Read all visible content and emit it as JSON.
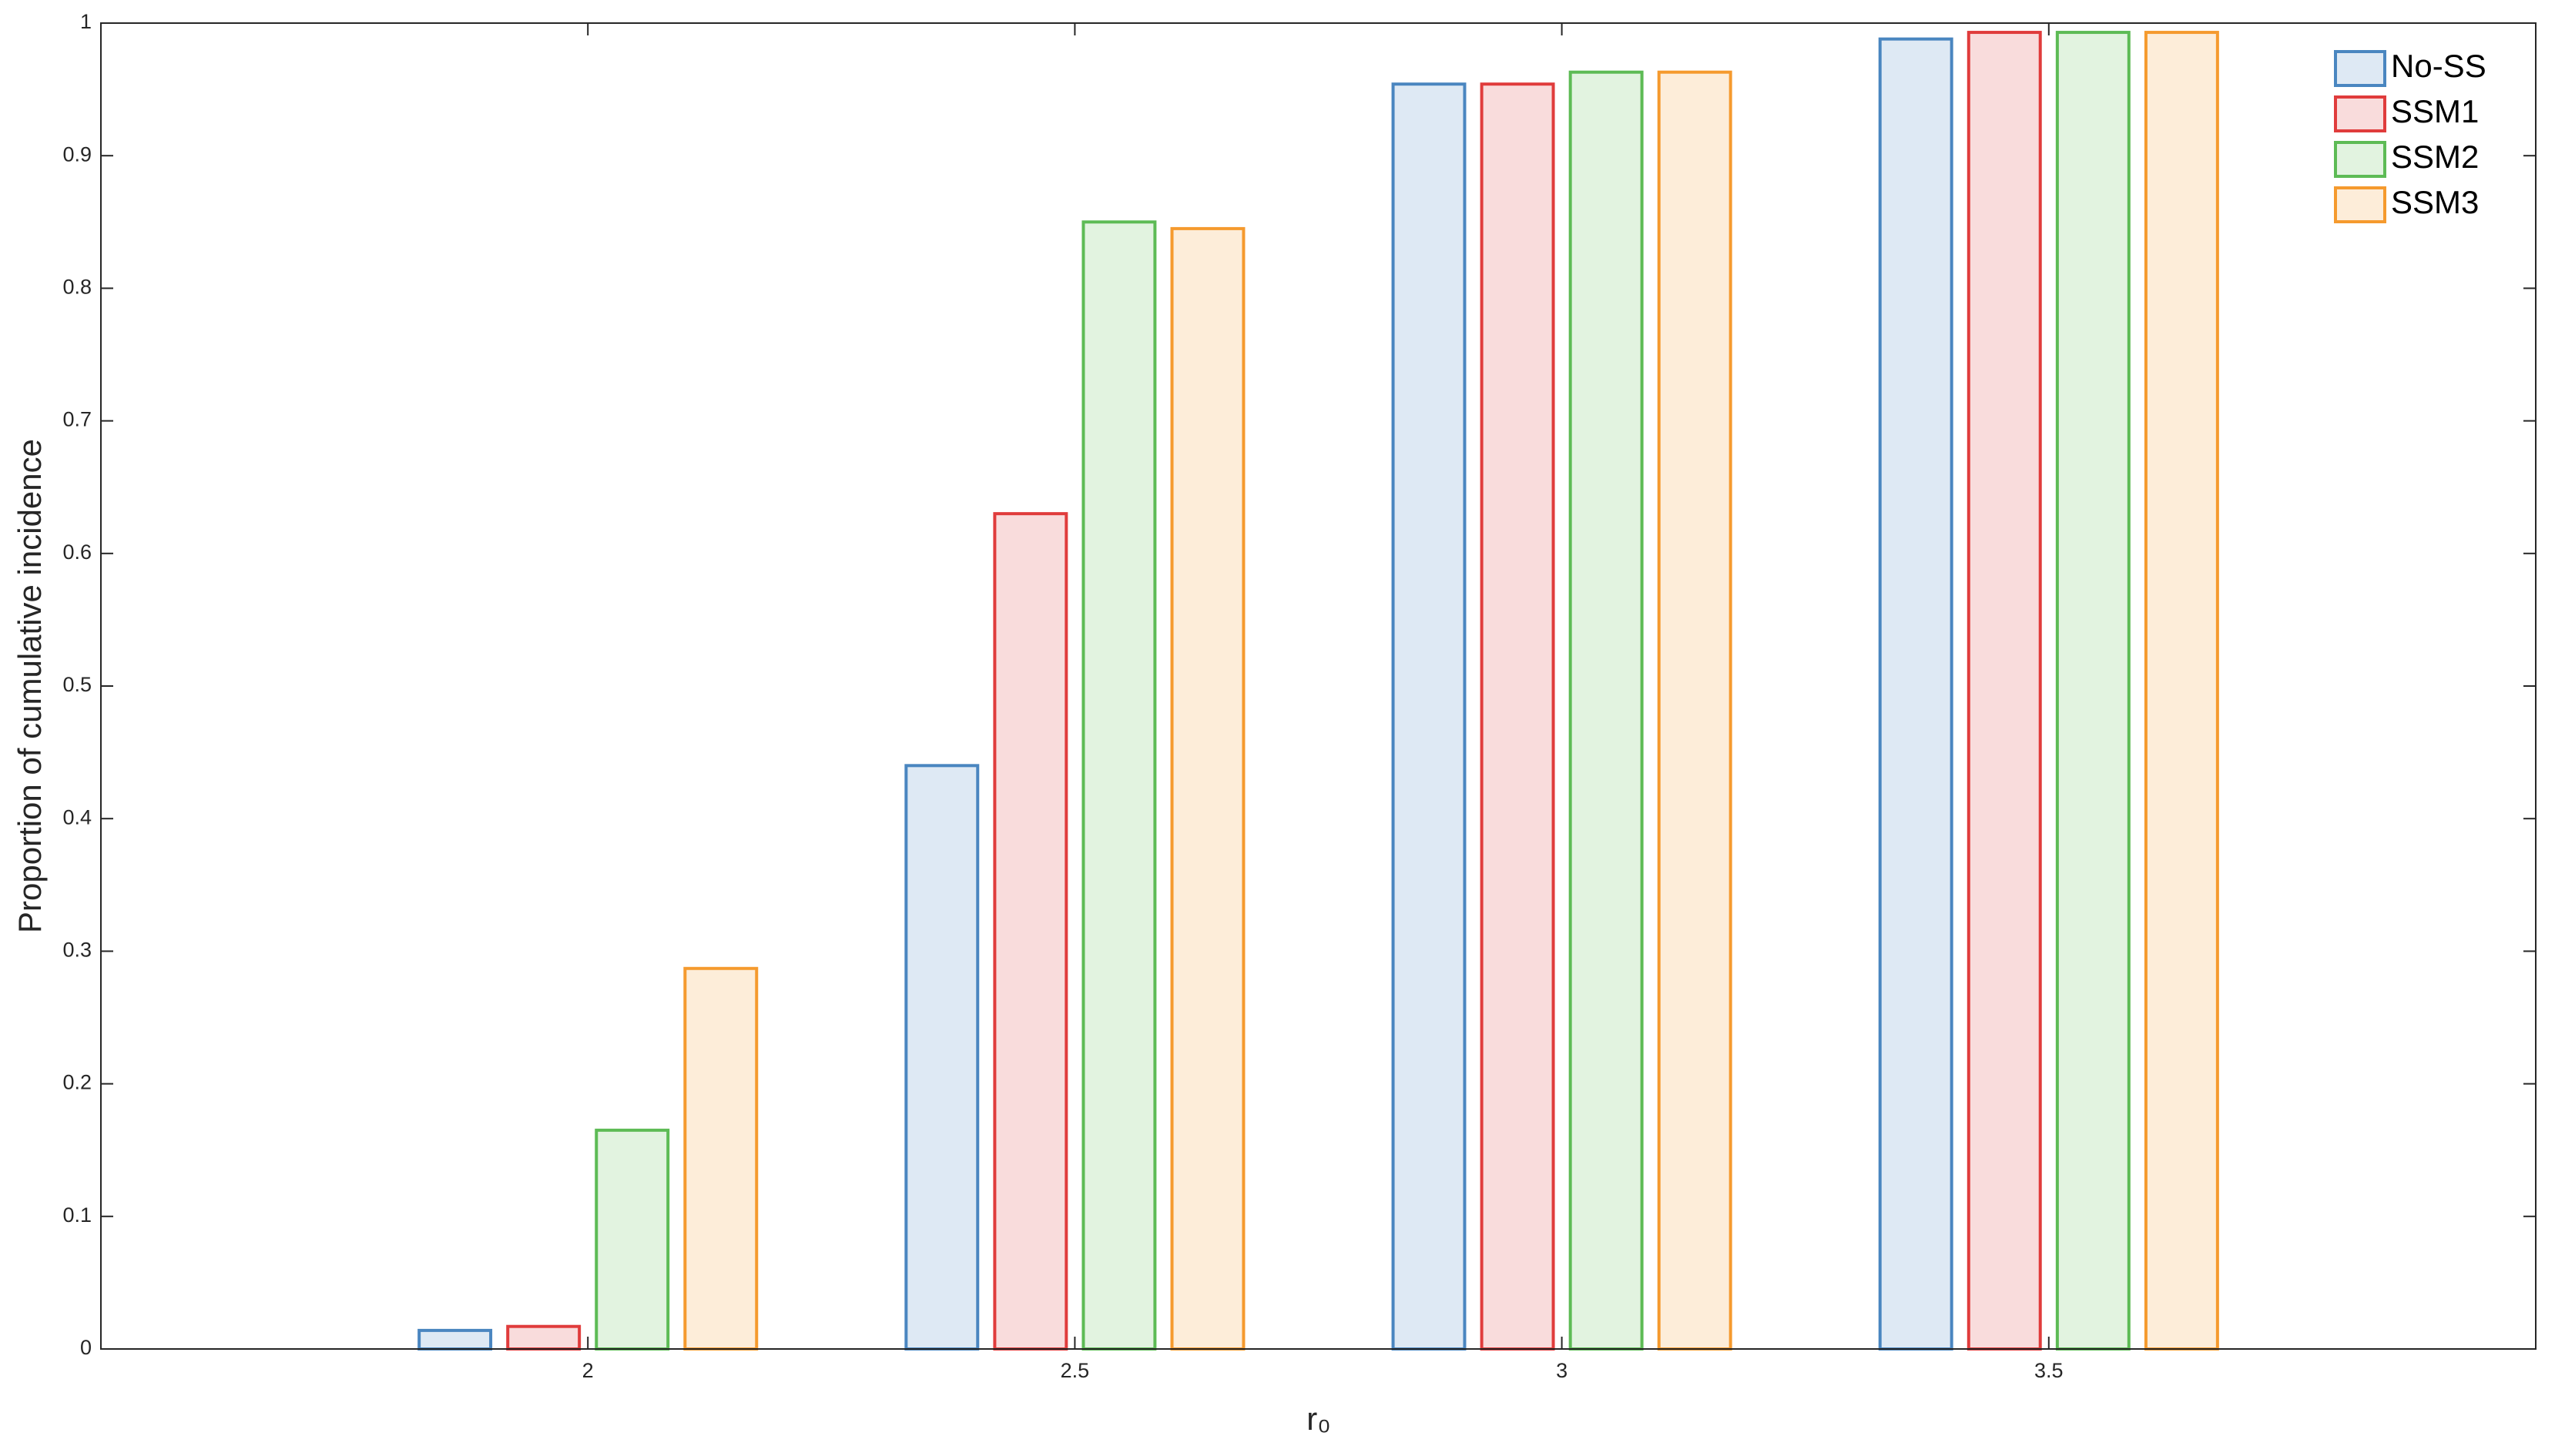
{
  "chart_data": {
    "type": "bar",
    "xlabel": "r₀",
    "ylabel": "Proportion of cumulative incidence",
    "x": [
      2,
      2.5,
      3,
      3.5
    ],
    "series": [
      {
        "name": "No-SS",
        "color": "#4a86c0",
        "values": [
          0.014,
          0.44,
          0.954,
          0.988
        ]
      },
      {
        "name": "SSM1",
        "color": "#e03c3c",
        "values": [
          0.017,
          0.63,
          0.954,
          0.993
        ]
      },
      {
        "name": "SSM2",
        "color": "#5dbb55",
        "values": [
          0.165,
          0.85,
          0.963,
          0.993
        ]
      },
      {
        "name": "SSM3",
        "color": "#f59a2e",
        "values": [
          0.287,
          0.845,
          0.963,
          0.993
        ]
      }
    ],
    "xlim": [
      1.5,
      4
    ],
    "xticks": [
      2,
      2.5,
      3,
      3.5
    ],
    "ylim": [
      0,
      1
    ],
    "yticks": [
      0,
      0.1,
      0.2,
      0.3,
      0.4,
      0.5,
      0.6,
      0.7,
      0.8,
      0.9,
      1
    ],
    "legend": "northeast",
    "grid": false
  }
}
